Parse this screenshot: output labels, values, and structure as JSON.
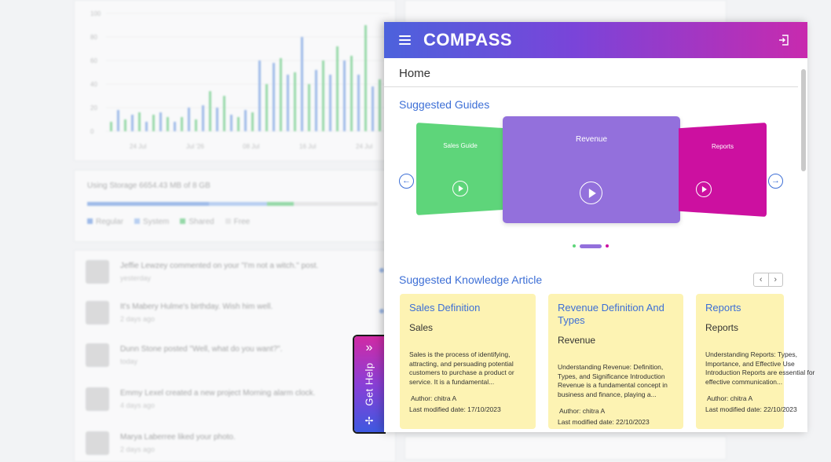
{
  "background": {
    "chart_y_ticks": [
      "100",
      "80",
      "60",
      "40",
      "20",
      "0"
    ],
    "chart_x_ticks": [
      "24 Jul",
      "Jul '26",
      "08 Jul",
      "16 Jul",
      "24 Jul"
    ],
    "storage_label": "Using Storage 6654.43 MB of 8 GB",
    "storage_legend": [
      "Regular",
      "System",
      "Shared",
      "Free"
    ],
    "feed": [
      {
        "text": "Jeffie Lewzey commented on your \"I'm not a witch.\" post.",
        "time": "yesterday"
      },
      {
        "text": "It's Mabery Hulme's birthday. Wish him well.",
        "time": "2 days ago"
      },
      {
        "text": "Dunn Stone posted \"Well, what do you want?\".",
        "time": "today"
      },
      {
        "text": "Emmy Lexel created a new project Morning alarm clock.",
        "time": "4 days ago"
      },
      {
        "text": "Marya Laberree liked your photo.",
        "time": "2 days ago"
      }
    ]
  },
  "gethelp": {
    "label": "Get Help",
    "chevron": "»",
    "move": "✢"
  },
  "panel": {
    "logo": "COMPASS",
    "home_title": "Home",
    "guides_title": "Suggested Guides",
    "guides": [
      {
        "title": "Sales Guide",
        "color": "#5ed57a"
      },
      {
        "title": "Revenue",
        "color": "#9370dc"
      },
      {
        "title": "Reports",
        "color": "#cc10a0"
      }
    ],
    "prev_arrow": "←",
    "next_arrow": "→",
    "articles_title": "Suggested Knowledge Article",
    "pager_prev": "‹",
    "pager_next": "›",
    "articles": [
      {
        "title": "Sales Definition",
        "category": "Sales",
        "description": "Sales is the process of identifying, attracting, and persuading potential customers to purchase a product or service. It is a fundamental...",
        "author": "Author: chitra A",
        "modified": "Last modified date: 17/10/2023"
      },
      {
        "title": "Revenue Definition And Types",
        "category": "Revenue",
        "description": "Understanding Revenue: Definition, Types, and Significance Introduction Revenue is a fundamental concept in business and finance, playing a...",
        "author": "Author: chitra A",
        "modified": "Last modified date: 22/10/2023"
      },
      {
        "title": "Reports",
        "category": "Reports",
        "description": "Understanding Reports: Types, Importance, and Effective Use Introduction Reports are essential for effective communication...",
        "author": "Author: chitra A",
        "modified": "Last modified date: 22/10/2023"
      }
    ]
  }
}
